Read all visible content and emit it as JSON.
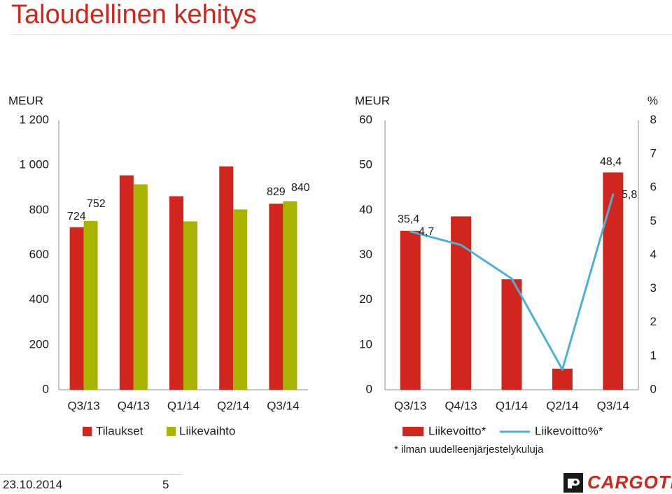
{
  "slide": {
    "title": "Taloudellinen kehitys",
    "footer_date": "23.10.2014",
    "page_number": "5",
    "footnote": "* ilman uudelleenjärjestelykuluja",
    "logo_text": "CARGOTEC"
  },
  "colors": {
    "title": "#d0261d",
    "red_bar": "#d0261d",
    "green_bar": "#a8b400",
    "line": "#4ab3d4",
    "axis": "#8c8c8c",
    "text": "#1a1a1a"
  },
  "chart_data": [
    {
      "type": "bar",
      "ylabel": "MEUR",
      "ylim": [
        0,
        1200
      ],
      "yticks": [
        "0",
        "200",
        "400",
        "600",
        "800",
        "1 000",
        "1 200"
      ],
      "yticks_values": [
        0,
        200,
        400,
        600,
        800,
        1000,
        1200
      ],
      "categories": [
        "Q3/13",
        "Q4/13",
        "Q1/14",
        "Q2/14",
        "Q3/14"
      ],
      "series": [
        {
          "name": "Tilaukset",
          "color": "#d0261d",
          "values": [
            724,
            955,
            862,
            995,
            829
          ],
          "labels": [
            "724",
            "",
            "",
            "",
            "829"
          ]
        },
        {
          "name": "Liikevaihto",
          "color": "#a8b400",
          "values": [
            752,
            915,
            750,
            803,
            840
          ],
          "labels": [
            "752",
            "",
            "",
            "",
            "840"
          ]
        }
      ],
      "legend": "bottom",
      "grid": false
    },
    {
      "type": "bar",
      "ylabel": "MEUR",
      "ylabel_right": "%",
      "ylim": [
        0,
        60
      ],
      "ylim_right": [
        0,
        8
      ],
      "yticks": [
        "0",
        "10",
        "20",
        "30",
        "40",
        "50",
        "60"
      ],
      "yticks_values": [
        0,
        10,
        20,
        30,
        40,
        50,
        60
      ],
      "yticks_right": [
        "0",
        "1",
        "2",
        "3",
        "4",
        "5",
        "6",
        "7",
        "8"
      ],
      "yticks_right_values": [
        0,
        1,
        2,
        3,
        4,
        5,
        6,
        7,
        8
      ],
      "categories": [
        "Q3/13",
        "Q4/13",
        "Q1/14",
        "Q2/14",
        "Q3/14"
      ],
      "series": [
        {
          "name": "Liikevoitto*",
          "type": "bar",
          "axis": "left",
          "color": "#d0261d",
          "values": [
            35.4,
            38.6,
            24.6,
            4.7,
            48.4
          ],
          "labels": [
            "35,4",
            "",
            "",
            "",
            "48,4"
          ]
        },
        {
          "name": "Liikevoitto%*",
          "type": "line",
          "axis": "right",
          "color": "#4ab3d4",
          "values": [
            4.7,
            4.3,
            3.3,
            0.6,
            5.8
          ],
          "labels": [
            "4,7",
            "",
            "",
            "",
            "5,8"
          ]
        }
      ],
      "legend": "bottom",
      "grid": false
    }
  ]
}
